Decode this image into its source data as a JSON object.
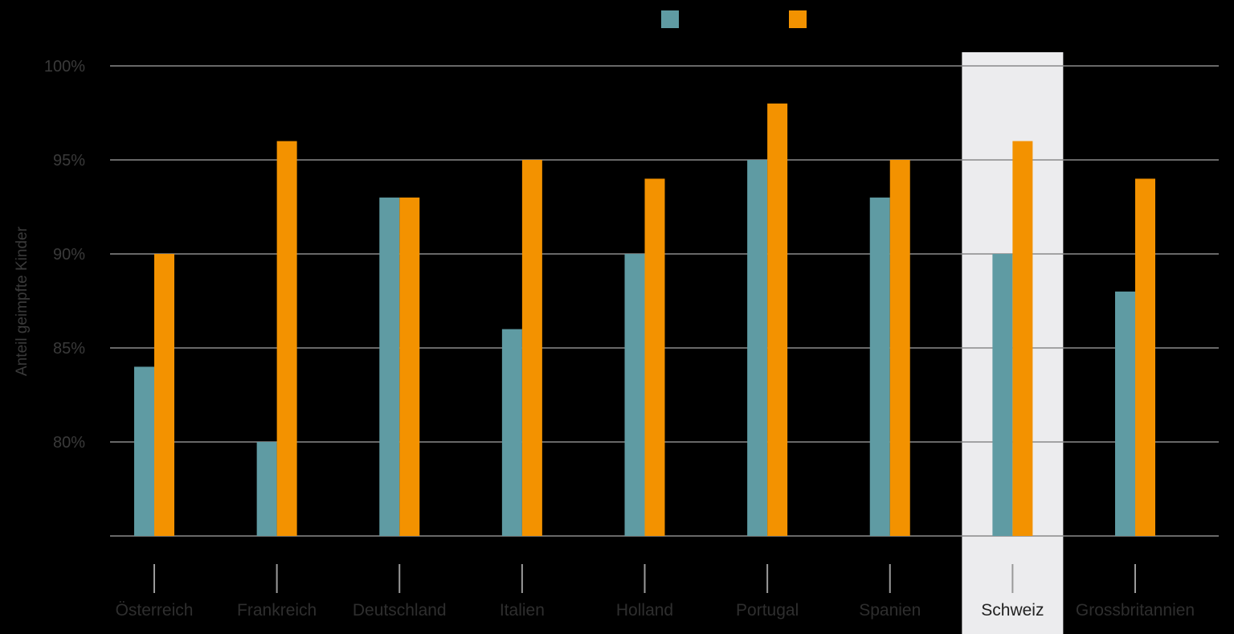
{
  "chart_data": {
    "type": "bar",
    "title": "",
    "xlabel": "",
    "ylabel": "Anteil geimpfte Kinder",
    "ylim": [
      75,
      100
    ],
    "yticks": [
      {
        "value": 80,
        "label": "80%"
      },
      {
        "value": 85,
        "label": "85%"
      },
      {
        "value": 90,
        "label": "90%"
      },
      {
        "value": 95,
        "label": "95%"
      },
      {
        "value": 100,
        "label": "100%"
      }
    ],
    "categories": [
      "Österreich",
      "Frankreich",
      "Deutschland",
      "Italien",
      "Holland",
      "Portugal",
      "Spanien",
      "Schweiz",
      "Grossbritannien"
    ],
    "highlight_category": "Schweiz",
    "grid": true,
    "legend_position": "top-center",
    "series": [
      {
        "color": "#5f9ba3",
        "values": [
          84,
          80,
          93,
          86,
          90,
          95,
          93,
          90,
          88
        ]
      },
      {
        "color": "#f39200",
        "values": [
          90,
          96,
          93,
          95,
          94,
          98,
          95,
          96,
          94
        ]
      }
    ],
    "colors": {
      "background": "#000000",
      "gridline": "#8a8a8a",
      "highlight_band": "#ececee",
      "tick_mark": "#9a9a9a"
    }
  }
}
